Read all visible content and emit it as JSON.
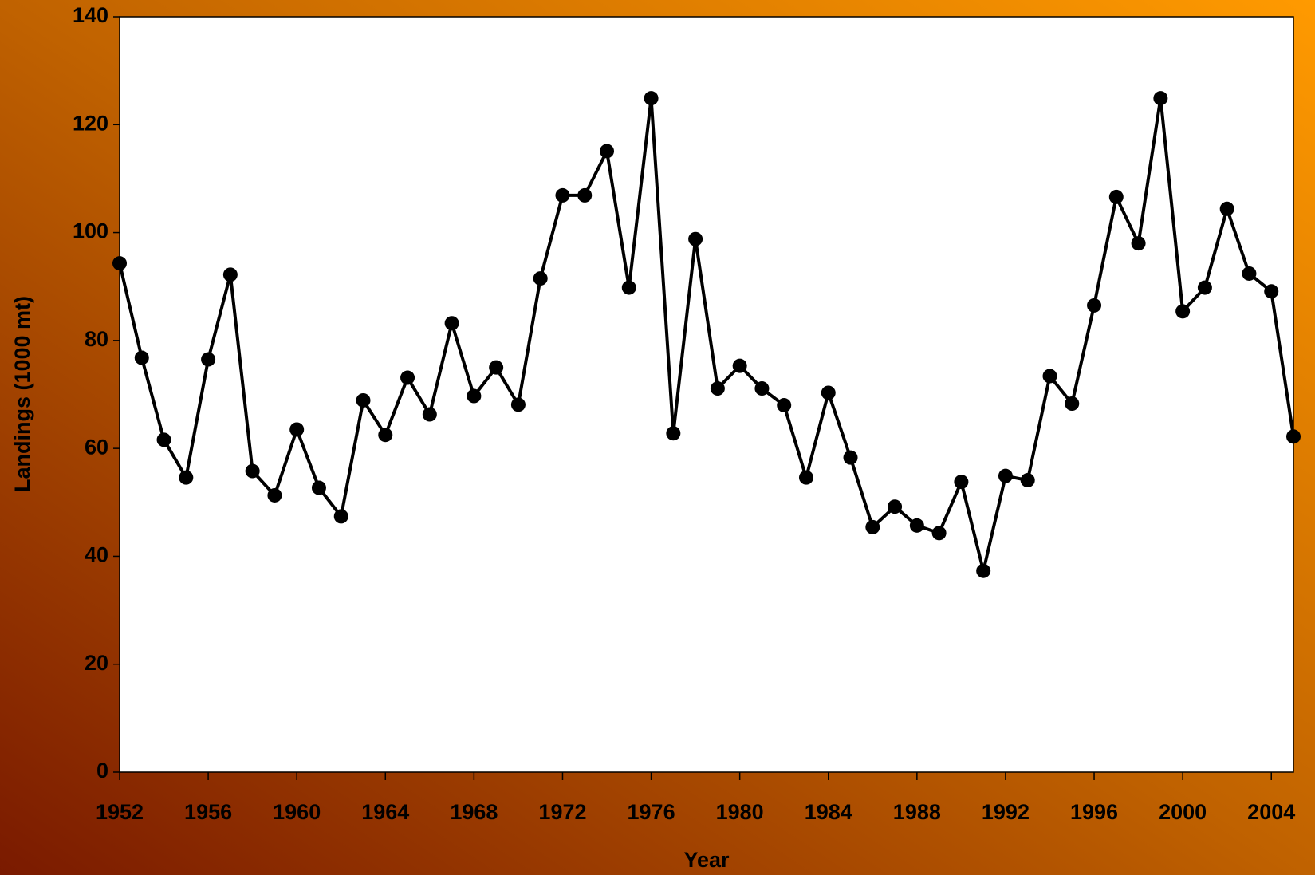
{
  "chart_data": {
    "type": "line",
    "x_label": "Year",
    "y_label": "Landings (1000 mt)",
    "x": [
      1952,
      1953,
      1954,
      1955,
      1956,
      1957,
      1958,
      1959,
      1960,
      1961,
      1962,
      1963,
      1964,
      1965,
      1966,
      1967,
      1968,
      1969,
      1970,
      1971,
      1972,
      1973,
      1974,
      1975,
      1976,
      1977,
      1978,
      1979,
      1980,
      1981,
      1982,
      1983,
      1984,
      1985,
      1986,
      1987,
      1988,
      1989,
      1990,
      1991,
      1992,
      1993,
      1994,
      1995,
      1996,
      1997,
      1998,
      1999,
      2000,
      2001,
      2002,
      2003,
      2004,
      2005
    ],
    "series": [
      {
        "color": "#000000",
        "values": [
          94.3,
          76.8,
          61.6,
          54.6,
          76.5,
          92.2,
          55.8,
          51.3,
          63.5,
          52.7,
          47.4,
          68.9,
          62.5,
          73.1,
          66.3,
          83.2,
          69.7,
          75.0,
          68.1,
          91.5,
          106.9,
          106.9,
          115.1,
          89.8,
          124.9,
          62.8,
          98.8,
          71.1,
          75.3,
          71.1,
          68.0,
          54.6,
          70.3,
          58.3,
          45.4,
          49.2,
          45.7,
          44.3,
          53.8,
          37.3,
          54.9,
          54.1,
          73.4,
          68.3,
          86.5,
          106.6,
          98.0,
          124.9,
          85.4,
          89.8,
          104.4,
          92.4,
          89.1,
          62.2
        ]
      }
    ],
    "xlim": [
      1952,
      2005
    ],
    "xticks": [
      1952,
      1956,
      1960,
      1964,
      1968,
      1972,
      1976,
      1980,
      1984,
      1988,
      1992,
      1996,
      2000,
      2004
    ],
    "ylim": [
      0,
      140
    ],
    "yticks": [
      0,
      20,
      40,
      60,
      80,
      100,
      120,
      140
    ]
  }
}
